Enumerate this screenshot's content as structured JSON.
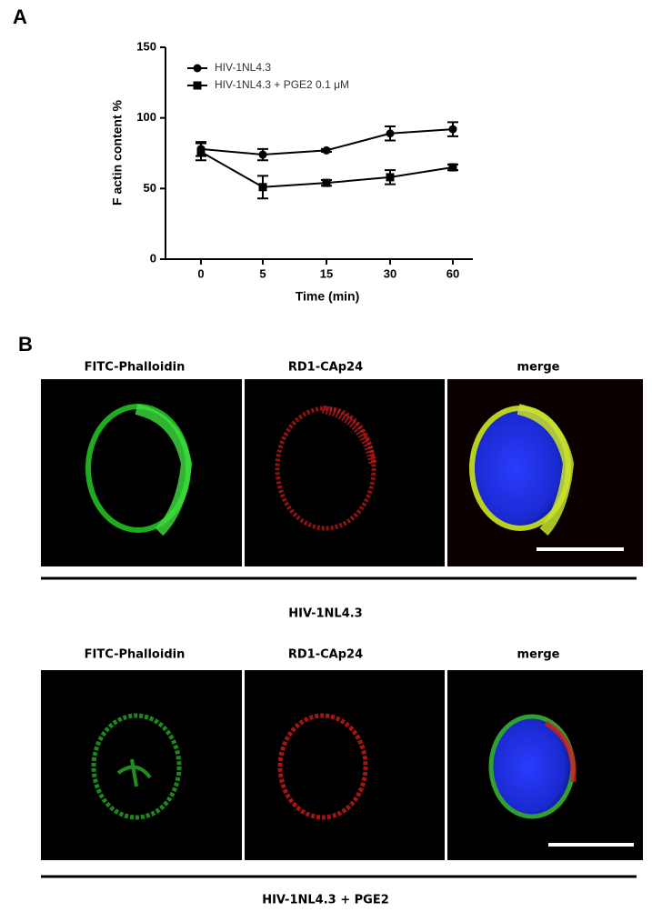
{
  "chart_data": {
    "type": "line",
    "panel_label": "A",
    "x_label": "Time (min)",
    "y_label": "F actin content %",
    "categories": [
      "0",
      "5",
      "15",
      "30",
      "60"
    ],
    "ylim": [
      0,
      150
    ],
    "yticks": [
      0,
      50,
      100,
      150
    ],
    "series": [
      {
        "name": "HIV-1NL4.3",
        "color": "#000000",
        "marker": "circle",
        "values": [
          78,
          74,
          77,
          89,
          92
        ],
        "errors": [
          5,
          4,
          1,
          5,
          5
        ]
      },
      {
        "name": "HIV-1NL4.3 + PGE2 0.1 μM",
        "color": "#000000",
        "marker": "square",
        "values": [
          76,
          51,
          54,
          58,
          65
        ],
        "errors": [
          6,
          8,
          2,
          5,
          2
        ]
      }
    ]
  },
  "panel_b": {
    "label": "B",
    "rows": [
      {
        "headers": [
          "FITC-Phalloidin",
          "RD1-CAp24",
          "merge"
        ],
        "condition": "HIV-1NL4.3"
      },
      {
        "headers": [
          "FITC-Phalloidin",
          "RD1-CAp24",
          "merge"
        ],
        "condition": "HIV-1NL4.3 + PGE2"
      }
    ]
  }
}
